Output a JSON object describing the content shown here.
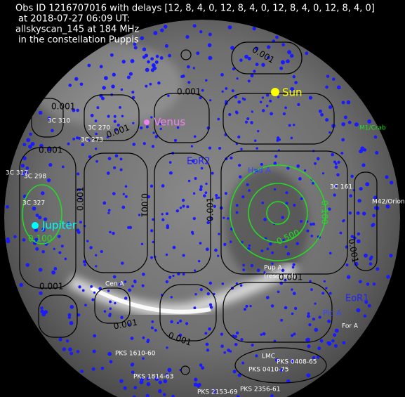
{
  "title": [
    "Obs ID 1216707016 with delays [12, 8, 4, 0, 12, 8, 4, 0, 12, 8, 4, 0, 12, 8, 4, 0]",
    "at 2018-07-27 06:09 UT:",
    "allskyscan_145 at 184 MHz",
    "in the constellation Puppis"
  ],
  "planets": [
    "Sun",
    "Venus",
    "Jupiter"
  ],
  "fields": [
    "EoR2",
    "EoR1"
  ],
  "sources": [
    "3C 310",
    "3C 270",
    "3C 273",
    "3C 298",
    "3C 317",
    "3C 327",
    "Hyd A",
    "3C 161",
    "M42/Orion",
    "M1/Crab",
    "Cen A",
    "Pup A",
    "(resolved)",
    "For A",
    "LMC",
    "PKS 0408-65",
    "PKS 0410-75",
    "PKS 1610-60",
    "PKS 1814-63",
    "PKS 2153-69",
    "PKS 2356-61",
    "Pic A"
  ],
  "contour_labels": [
    "0.001",
    "0.100",
    "0.500"
  ]
}
